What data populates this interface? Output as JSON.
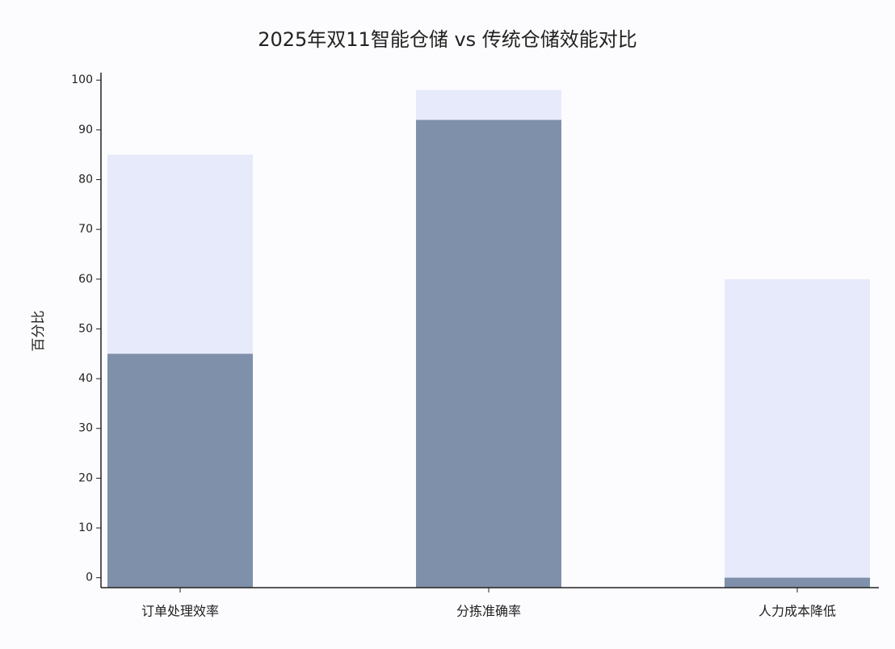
{
  "chart_data": {
    "type": "bar",
    "title": "2025年双11智能仓储 vs 传统仓储效能对比",
    "y_label": "百分比",
    "categories": [
      "订单处理效率",
      "分拣准确率",
      "人力成本降低"
    ],
    "series": [
      {
        "color": "#e6eafb",
        "values": [
          85,
          98,
          60
        ]
      },
      {
        "color": "#7f90aa",
        "values": [
          45,
          92,
          0
        ]
      }
    ],
    "ylim": [
      -2,
      101.5
    ],
    "yticks": [
      0,
      10,
      20,
      30,
      40,
      50,
      60,
      70,
      80,
      90,
      100
    ]
  }
}
